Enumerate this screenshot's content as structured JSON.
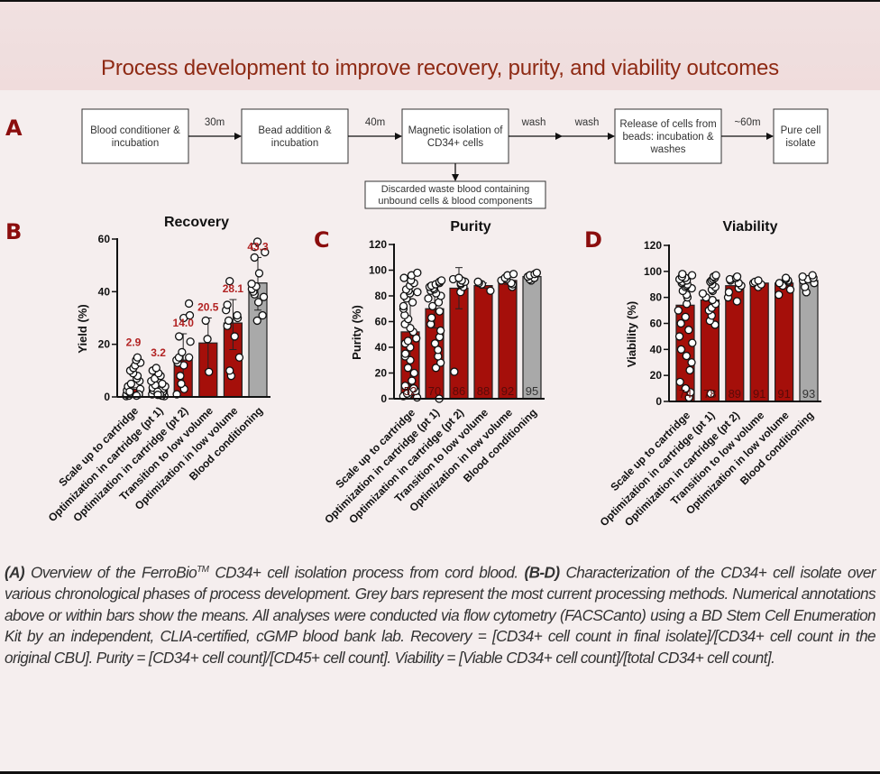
{
  "page": {
    "title": "Process development to improve recovery, purity, and viability outcomes"
  },
  "panels": {
    "a": "A",
    "b": "B",
    "c": "C",
    "d": "D"
  },
  "flow": {
    "boxes": [
      {
        "lines": [
          "Blood conditioner &",
          "incubation"
        ]
      },
      {
        "lines": [
          "Bead addition &",
          "incubation"
        ]
      },
      {
        "lines": [
          "Magnetic isolation of",
          "CD34+ cells"
        ]
      },
      {
        "lines": [
          "Release of cells from",
          "beads: incubation &",
          "washes"
        ]
      },
      {
        "lines": [
          "Pure cell",
          "isolate"
        ]
      }
    ],
    "arrows": [
      "30m",
      "40m",
      "wash",
      "wash",
      "~60m"
    ],
    "waste_box": {
      "lines": [
        "Discarded waste blood containing",
        "unbound cells & blood components"
      ]
    }
  },
  "colors": {
    "bar_red": "#a50f0a",
    "bar_grey": "#a9a9a9",
    "annotation_red": "#b22222",
    "title_red": "#8e2a14"
  },
  "chart_data": [
    {
      "type": "bar",
      "title": "Recovery",
      "xlabel": "",
      "ylabel": "Yield  (%)",
      "ylim": [
        0,
        60
      ],
      "yticks": [
        0,
        20,
        40,
        60
      ],
      "categories": [
        "Scale up to cartridge",
        "Optimization in cartridge (pt 1)",
        "Optimization in cartridge (pt 2)",
        "Transition to low volume",
        "Optimization in low volume",
        "Blood conditioning"
      ],
      "values": [
        2.9,
        3.2,
        14.0,
        20.5,
        28.1,
        43.3
      ],
      "value_labels": [
        "2.9",
        "3.2",
        "14.0",
        "20.5",
        "28.1",
        "43.3"
      ],
      "label_position": "above",
      "bar_colors": [
        "red",
        "red",
        "red",
        "red",
        "red",
        "grey"
      ],
      "error": [
        [
          0,
          3.5
        ],
        [
          0,
          3.0
        ],
        [
          4,
          24
        ],
        [
          10,
          30
        ],
        [
          18,
          37
        ],
        [
          33,
          53
        ]
      ],
      "points": [
        [
          0.3,
          0.5,
          1,
          1.5,
          2,
          2.5,
          3,
          4,
          5,
          6,
          7,
          8,
          9,
          10,
          11,
          12,
          13,
          14,
          15,
          1,
          2,
          0.5
        ],
        [
          0.3,
          0.5,
          1,
          1.5,
          2,
          2.5,
          3,
          3.5,
          4,
          4.5,
          5,
          6,
          7,
          8,
          9,
          10,
          11,
          1,
          2,
          0.8
        ],
        [
          1,
          3,
          5,
          8,
          12,
          13,
          14,
          15,
          15,
          17,
          21,
          23,
          30,
          31,
          35.5
        ],
        [
          9.5,
          22,
          29
        ],
        [
          8,
          10,
          15,
          23,
          27,
          29,
          30,
          31,
          33,
          35,
          44
        ],
        [
          29,
          31,
          36,
          38,
          39,
          40,
          41,
          42,
          43,
          47,
          53,
          55,
          57,
          59
        ]
      ]
    },
    {
      "type": "bar",
      "title": "Purity",
      "xlabel": "",
      "ylabel": "Purity (%)",
      "ylim": [
        0,
        120
      ],
      "yticks": [
        0,
        20,
        40,
        60,
        80,
        100,
        120
      ],
      "categories": [
        "Scale up to cartridge",
        "Optimization in cartridge (pt 1)",
        "Optimization in cartridge (pt 2)",
        "Transition to low volume",
        "Optimization in low volume",
        "Blood conditioning"
      ],
      "values": [
        52,
        70,
        86,
        88,
        92,
        95
      ],
      "value_labels": [
        "52",
        "70",
        "86",
        "88",
        "92",
        "95"
      ],
      "label_position": "inside",
      "bar_colors": [
        "red",
        "red",
        "red",
        "red",
        "red",
        "grey"
      ],
      "error": [
        [
          10,
          94
        ],
        [
          55,
          85
        ],
        [
          70,
          102
        ],
        [
          86,
          90
        ],
        [
          89,
          95
        ],
        [
          93,
          97
        ]
      ],
      "points": [
        [
          1,
          2,
          3,
          4,
          5,
          6,
          8,
          10,
          14,
          20,
          24,
          30,
          33,
          35,
          40,
          43,
          45,
          47,
          52,
          55,
          58,
          62,
          65,
          70,
          72,
          75,
          78,
          80,
          82,
          83,
          84,
          85,
          88,
          90,
          92,
          94,
          96,
          98
        ],
        [
          0,
          24,
          28,
          33,
          38,
          43,
          48,
          53,
          58,
          63,
          68,
          72,
          75,
          78,
          80,
          82,
          84,
          85,
          86,
          87,
          88,
          89,
          90,
          91,
          92
        ],
        [
          21,
          83,
          87,
          89,
          90,
          91,
          92,
          93,
          94
        ],
        [
          84,
          89,
          90,
          91
        ],
        [
          87,
          89,
          90,
          92,
          93,
          94,
          96,
          97
        ],
        [
          92,
          93,
          94,
          95,
          96,
          97,
          98
        ]
      ]
    },
    {
      "type": "bar",
      "title": "Viability",
      "xlabel": "",
      "ylabel": "Viability (%)",
      "ylim": [
        0,
        120
      ],
      "yticks": [
        0,
        20,
        40,
        60,
        80,
        100,
        120
      ],
      "categories": [
        "Scale up to cartridge",
        "Optimization in cartridge (pt 1)",
        "Optimization in cartridge (pt 2)",
        "Transition to low volume",
        "Optimization in low volume",
        "Blood conditioning"
      ],
      "values": [
        74,
        78,
        89,
        91,
        91,
        93
      ],
      "value_labels": [
        "74",
        "78",
        "89",
        "91",
        "91",
        "93"
      ],
      "label_position": "inside",
      "bar_colors": [
        "red",
        "red",
        "red",
        "red",
        "red",
        "grey"
      ],
      "error": [
        [
          74,
          74
        ],
        [
          78,
          78
        ],
        [
          89,
          89
        ],
        [
          91,
          91
        ],
        [
          91,
          91
        ],
        [
          93,
          93
        ]
      ],
      "points": [
        [
          3,
          7,
          10,
          15,
          24,
          30,
          35,
          40,
          45,
          50,
          55,
          60,
          65,
          70,
          75,
          80,
          82,
          85,
          87,
          88,
          89,
          90,
          91,
          92,
          93,
          94,
          95,
          96,
          97,
          98
        ],
        [
          6,
          59,
          62,
          66,
          70,
          72,
          75,
          78,
          80,
          83,
          85,
          86,
          88,
          90,
          92,
          93,
          94,
          95,
          96,
          97
        ],
        [
          77,
          80,
          84,
          87,
          89,
          91,
          93,
          94,
          95,
          96
        ],
        [
          88,
          90,
          91,
          92,
          93
        ],
        [
          82,
          86,
          89,
          91,
          92,
          93,
          94,
          95
        ],
        [
          84,
          88,
          91,
          93,
          94,
          95,
          96,
          97
        ]
      ]
    }
  ],
  "caption": {
    "p1_bold": "(A)",
    "p1_text": " Overview of the FerroBio",
    "p1_sup": "TM",
    "p1_text2": " CD34+ cell isolation process from cord blood. ",
    "p2_bold": "(B-D)",
    "p2_text": " Characterization of the CD34+ cell isolate over various chronological phases of process development. Grey bars represent the most current processing methods. Numerical annotations above or within bars show the means. All analyses were conducted via flow cytometry (FACSCanto) using a BD Stem Cell Enumeration Kit by an independent, CLIA-certified, cGMP blood bank lab. Recovery = [CD34+ cell count in final isolate]/[CD34+ cell count in the original CBU]. Purity = [CD34+ cell count]/[CD45+ cell count]. Viability = [Viable CD34+ cell count]/[total CD34+ cell count]."
  }
}
